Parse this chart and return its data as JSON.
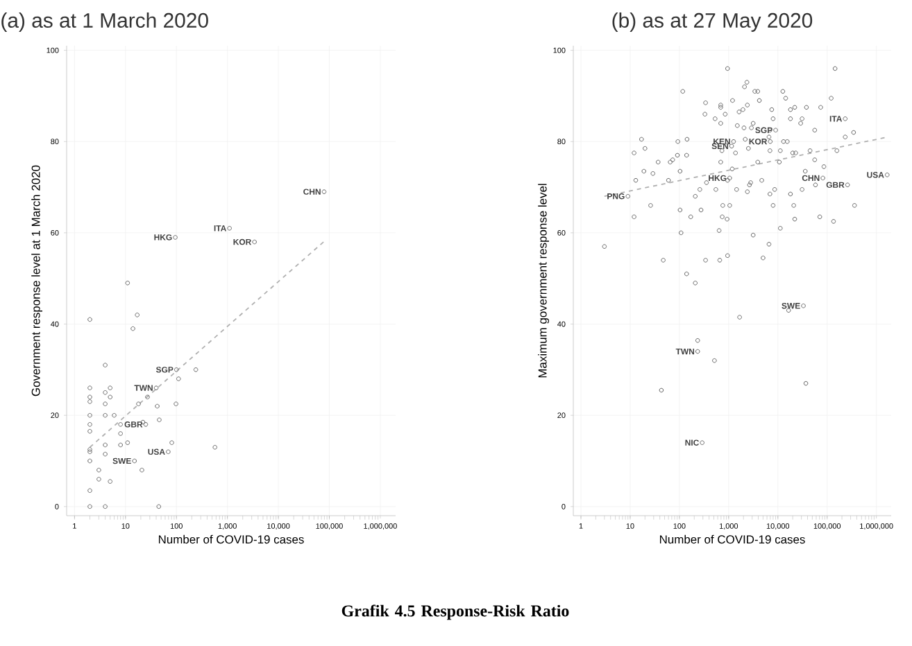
{
  "chart_data": [
    {
      "type": "scatter",
      "title": "(a) as at 1 March 2020",
      "xlabel": "Number of COVID-19 cases",
      "ylabel": "Government response level at 1 March 2020",
      "log": "x",
      "grid": true,
      "xlim": [
        0.7,
        2000000
      ],
      "ylim": [
        -2,
        101
      ],
      "xticks": [
        1,
        10,
        100,
        {
          "value": 1000,
          "label": "1,000"
        },
        {
          "value": 10000,
          "label": "10,000"
        },
        {
          "value": 100000,
          "label": "100,000"
        },
        {
          "value": 1000000,
          "label": "1,000,000"
        }
      ],
      "yticks": [
        0,
        20,
        40,
        60,
        80,
        100
      ],
      "series": [
        {
          "color": "#666666",
          "marker": "circle",
          "x": [
            11,
            2,
            17,
            14,
            4,
            100,
            240,
            110,
            2,
            5,
            40,
            4,
            2,
            2,
            5,
            27,
            4,
            18,
            42,
            98,
            2,
            4,
            6,
            8,
            22,
            25,
            46,
            2,
            2,
            8,
            11,
            81,
            4,
            8,
            570,
            69,
            2,
            2,
            4,
            2,
            15,
            3,
            21,
            3,
            5,
            2,
            2,
            4,
            45,
            95,
            1100,
            3400,
            79000
          ],
          "values": [
            49,
            41,
            42,
            39,
            31,
            30,
            30,
            28,
            26,
            26,
            26,
            25,
            24,
            23,
            24,
            24,
            22.5,
            22.5,
            22,
            22.5,
            20,
            20,
            20,
            18,
            18.5,
            18,
            19,
            18,
            16.5,
            16,
            14,
            14,
            13.5,
            13.5,
            13,
            12,
            12.5,
            12,
            11.5,
            10,
            10,
            8,
            8,
            6,
            5.5,
            3.5,
            0,
            0,
            0,
            59,
            61,
            58,
            69
          ]
        },
        {
          "type": "line",
          "color": "#b0b0b0",
          "line_style": "dashed",
          "marker": "none",
          "x": [
            2,
            77000
          ],
          "values": [
            13,
            58
          ]
        }
      ],
      "annotations": [
        {
          "text": "CHN",
          "x": 79000,
          "y": 69
        },
        {
          "text": "ITA",
          "x": 1100,
          "y": 61
        },
        {
          "text": "KOR",
          "x": 3400,
          "y": 58
        },
        {
          "text": "HKG",
          "x": 95,
          "y": 59
        },
        {
          "text": "SGP",
          "x": 100,
          "y": 30
        },
        {
          "text": "TWN",
          "x": 40,
          "y": 26
        },
        {
          "text": "GBR",
          "x": 25,
          "y": 18
        },
        {
          "text": "USA",
          "x": 69,
          "y": 12
        },
        {
          "text": "SWE",
          "x": 15,
          "y": 10
        },
        "Grafik 4.5  Response-Risk Ratio"
      ]
    },
    {
      "type": "scatter",
      "title": "(b) as at 27 May 2020",
      "xlabel": "Number of COVID-19 cases",
      "ylabel": "Maximum government response level",
      "log": "x",
      "grid": true,
      "xlim": [
        0.7,
        2000000
      ],
      "ylim": [
        -2,
        101
      ],
      "xticks": [
        1,
        10,
        100,
        {
          "value": 1000,
          "label": "1,000"
        },
        {
          "value": 10000,
          "label": "10,000"
        },
        {
          "value": 100000,
          "label": "100,000"
        },
        {
          "value": 1000000,
          "label": "1,000,000"
        }
      ],
      "yticks": [
        0,
        20,
        40,
        60,
        80,
        100
      ],
      "series": [
        {
          "color": "#666666",
          "marker": "circle",
          "x": [
            9,
            1260,
            1150,
            7000,
            9000,
            233000,
            1050,
            82000,
            260000,
            1660000,
            3,
            33000,
            16500,
            235,
            515,
            235,
            290,
            43,
            37000,
            1670,
            47,
            140,
            210,
            340,
            660,
            950,
            5000,
            950,
            145000,
            117,
            2100,
            2350,
            3400,
            3900,
            12600,
            14400,
            121000,
            340,
            690,
            690,
            1200,
            2400,
            4200,
            1630,
            1950,
            7500,
            18000,
            22000,
            38000,
            74000,
            330,
            530,
            850,
            690,
            3150,
            8000,
            18000,
            31000,
            29000,
            1500,
            2050,
            2900,
            6900,
            56000,
            233000,
            345000,
            17,
            93,
            143,
            2170,
            6600,
            13000,
            15500,
            6900,
            11200,
            45000,
            158000,
            12,
            20,
            730,
            1380,
            2520,
            20000,
            23000,
            91,
            140,
            73,
            56000,
            19,
            29,
            37,
            65,
            13,
            60,
            103,
            690,
            1180,
            3900,
            10700,
            36000,
            86000,
            355,
            550,
            260,
            210,
            950,
            2800,
            4700,
            1450,
            2400,
            2650,
            6900,
            8600,
            31000,
            18000,
            58000,
            26,
            103,
            275,
            170,
            760,
            1050,
            21000,
            8000,
            360000,
            12,
            740,
            930,
            22000,
            71000,
            135000,
            108,
            640,
            3150,
            11200,
            6600
          ],
          "values": [
            68,
            80,
            79,
            80,
            82.5,
            85,
            72,
            72,
            70.5,
            72.7,
            57,
            44,
            43,
            34,
            32,
            36.4,
            14,
            25.5,
            27,
            41.5,
            54,
            51,
            49,
            54,
            54,
            55,
            54.5,
            96,
            96,
            91,
            92,
            93,
            91,
            91,
            91,
            89.5,
            89.5,
            88.5,
            88,
            87.5,
            89,
            88,
            89,
            86.5,
            87,
            87,
            87,
            87.5,
            87.5,
            87.5,
            86,
            85,
            86,
            84,
            84,
            85,
            85,
            85,
            84,
            83.5,
            83,
            83,
            82.5,
            82.5,
            81,
            82,
            80.5,
            80,
            80.5,
            80.5,
            81,
            80,
            80,
            78,
            78,
            78,
            78,
            77.5,
            78.5,
            78,
            77.5,
            78.5,
            77.5,
            77.5,
            77,
            77,
            76,
            76,
            73.5,
            73,
            75.5,
            75.5,
            71.5,
            71.5,
            73.5,
            75.5,
            74,
            75.5,
            75.5,
            73.5,
            74.5,
            71,
            69.5,
            69.5,
            68,
            71.5,
            71,
            71.5,
            69.5,
            69,
            70.5,
            68.5,
            69.5,
            69.5,
            68.5,
            70.5,
            66,
            65,
            65,
            63.5,
            66,
            66,
            66,
            66,
            66,
            63.5,
            63.5,
            63,
            63,
            63.5,
            62.5,
            60,
            60.5,
            59.5,
            61,
            57.5
          ]
        },
        {
          "type": "line",
          "color": "#b0b0b0",
          "line_style": "dashed",
          "marker": "none",
          "x": [
            3,
            1700000
          ],
          "values": [
            68,
            81
          ]
        }
      ],
      "annotations": [
        {
          "text": "PNG",
          "x": 9,
          "y": 68
        },
        {
          "text": "KEN",
          "x": 1260,
          "y": 80
        },
        {
          "text": "SEN",
          "x": 1150,
          "y": 79
        },
        {
          "text": "KOR",
          "x": 7000,
          "y": 80
        },
        {
          "text": "SGP",
          "x": 9000,
          "y": 82.5
        },
        {
          "text": "ITA",
          "x": 233000,
          "y": 85
        },
        {
          "text": "HKG",
          "x": 1050,
          "y": 72
        },
        {
          "text": "CHN",
          "x": 82000,
          "y": 72
        },
        {
          "text": "GBR",
          "x": 260000,
          "y": 70.5
        },
        {
          "text": "USA",
          "x": 1660000,
          "y": 72.7
        },
        {
          "text": "SWE",
          "x": 33000,
          "y": 44
        },
        {
          "text": "TWN",
          "x": 235,
          "y": 34
        },
        {
          "text": "NIC",
          "x": 290,
          "y": 14
        }
      ]
    }
  ]
}
